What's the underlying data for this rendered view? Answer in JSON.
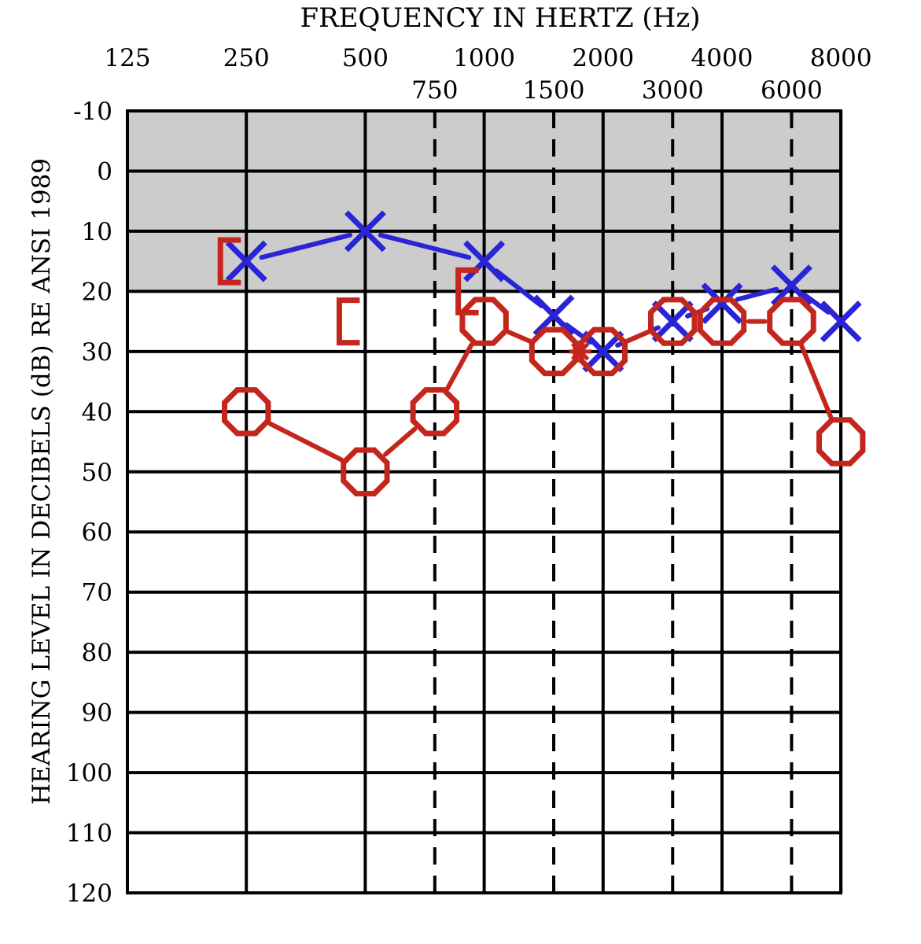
{
  "chart_data": {
    "type": "scatter",
    "title": "FREQUENCY IN HERTZ (Hz)",
    "ylabel": "HEARING LEVEL IN DECIBELS (dB) RE ANSI 1989",
    "x_ticks_major": [
      "125",
      "250",
      "500",
      "1000",
      "2000",
      "4000",
      "8000"
    ],
    "x_ticks_minor": [
      "750",
      "1500",
      "3000",
      "6000"
    ],
    "y_ticks": [
      "-10",
      "0",
      "10",
      "20",
      "30",
      "40",
      "50",
      "60",
      "70",
      "80",
      "90",
      "100",
      "110",
      "120"
    ],
    "ylim": [
      -10,
      120
    ],
    "y_inverted": true,
    "x_scale": "log2",
    "normal_range_shaded": [
      -10,
      20
    ],
    "grid": true,
    "series": [
      {
        "symbol": "X",
        "color": "#2b24d6",
        "connected": true,
        "points": [
          {
            "x": 250,
            "y": 15
          },
          {
            "x": 500,
            "y": 10
          },
          {
            "x": 1000,
            "y": 15
          },
          {
            "x": 1500,
            "y": 24
          },
          {
            "x": 2000,
            "y": 30
          },
          {
            "x": 3000,
            "y": 25
          },
          {
            "x": 4000,
            "y": 22
          },
          {
            "x": 6000,
            "y": 19
          },
          {
            "x": 8000,
            "y": 25
          }
        ]
      },
      {
        "symbol": "O",
        "color": "#c4261d",
        "connected": true,
        "points": [
          {
            "x": 250,
            "y": 40
          },
          {
            "x": 500,
            "y": 50
          },
          {
            "x": 750,
            "y": 40
          },
          {
            "x": 1000,
            "y": 25
          },
          {
            "x": 1500,
            "y": 30
          },
          {
            "x": 2000,
            "y": 30
          },
          {
            "x": 3000,
            "y": 25
          },
          {
            "x": 4000,
            "y": 25
          },
          {
            "x": 6000,
            "y": 25
          },
          {
            "x": 8000,
            "y": 45
          }
        ]
      },
      {
        "symbol": "[",
        "color": "#c4261d",
        "connected": false,
        "points": [
          {
            "x": 250,
            "y": 15
          },
          {
            "x": 500,
            "y": 25
          },
          {
            "x": 1000,
            "y": 20
          }
        ]
      }
    ],
    "star_marker": {
      "x": 1750,
      "y": 30,
      "color": "#c4261d"
    }
  }
}
